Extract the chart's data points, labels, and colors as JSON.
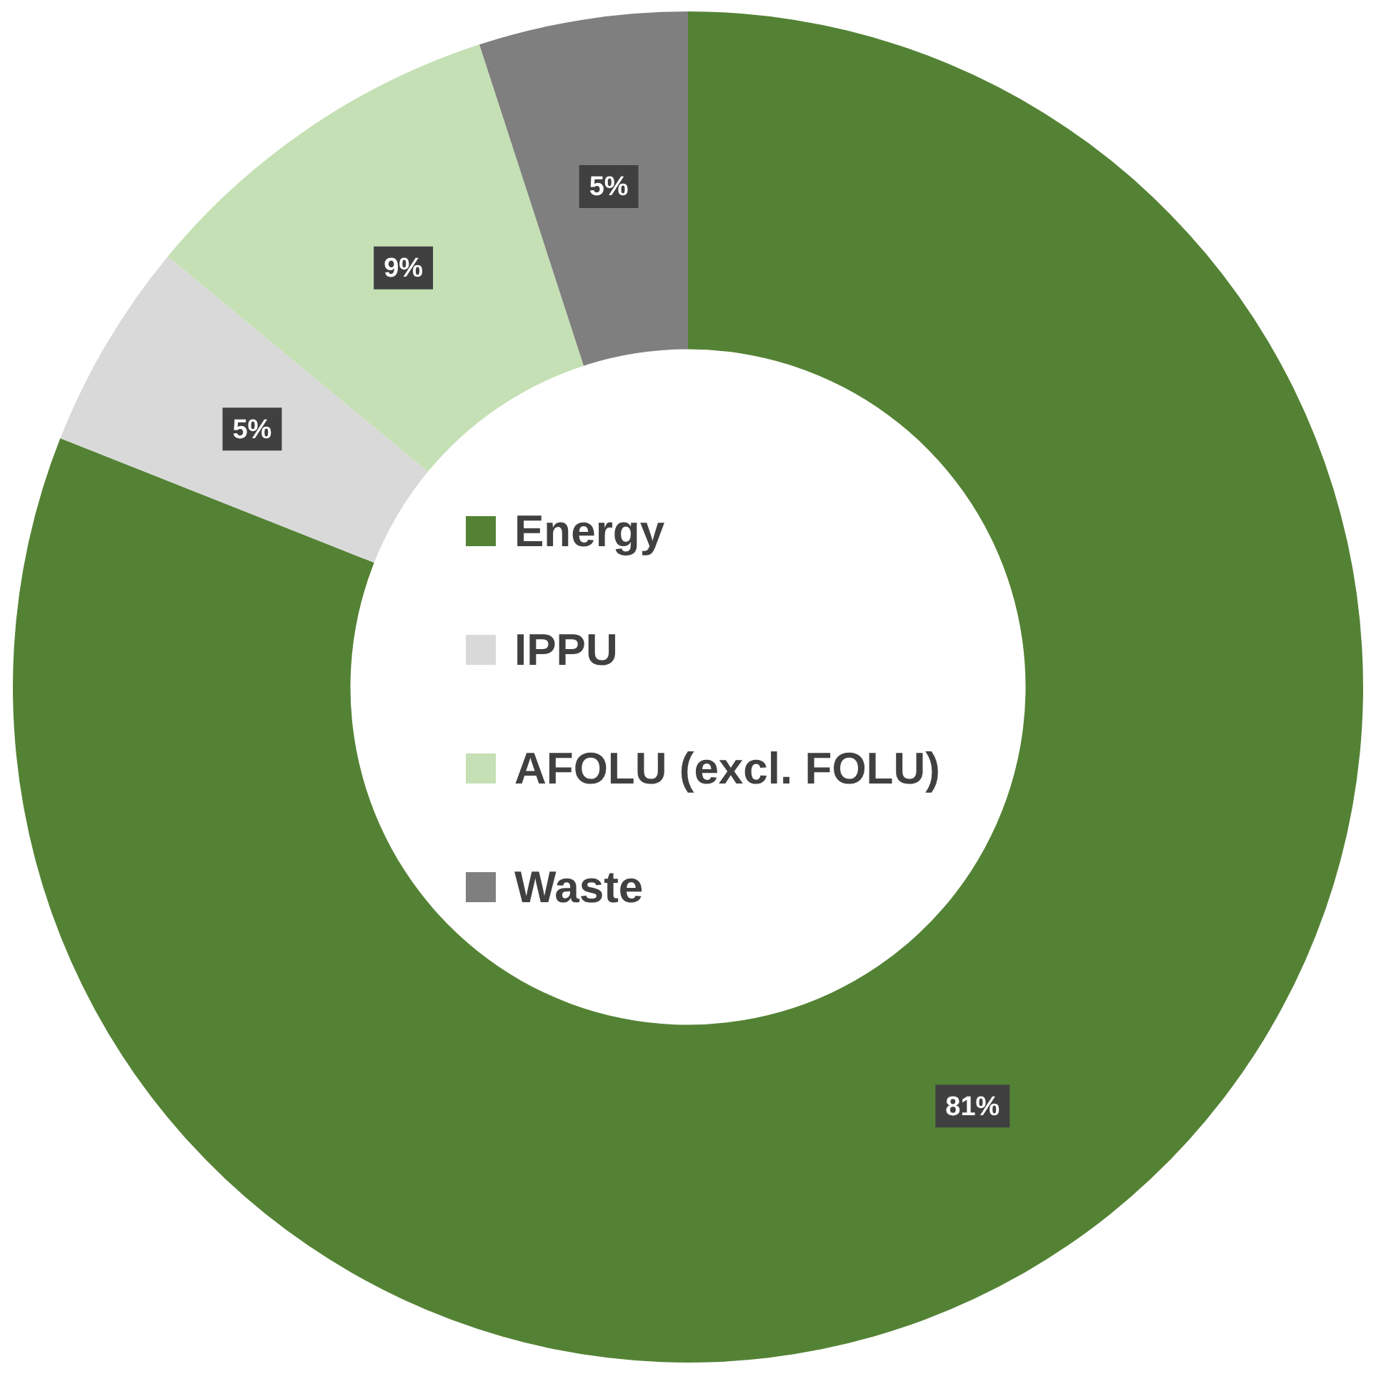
{
  "chart_data": {
    "type": "donut",
    "categories": [
      "Energy",
      "IPPU",
      "AFOLU (excl. FOLU)",
      "Waste"
    ],
    "values": [
      81,
      5,
      9,
      5
    ],
    "colors": [
      "#548235",
      "#d9d9d9",
      "#c5e0b4",
      "#7f7f7f"
    ],
    "value_labels": [
      "81%",
      "5%",
      "9%",
      "5%"
    ],
    "legend": "center"
  }
}
